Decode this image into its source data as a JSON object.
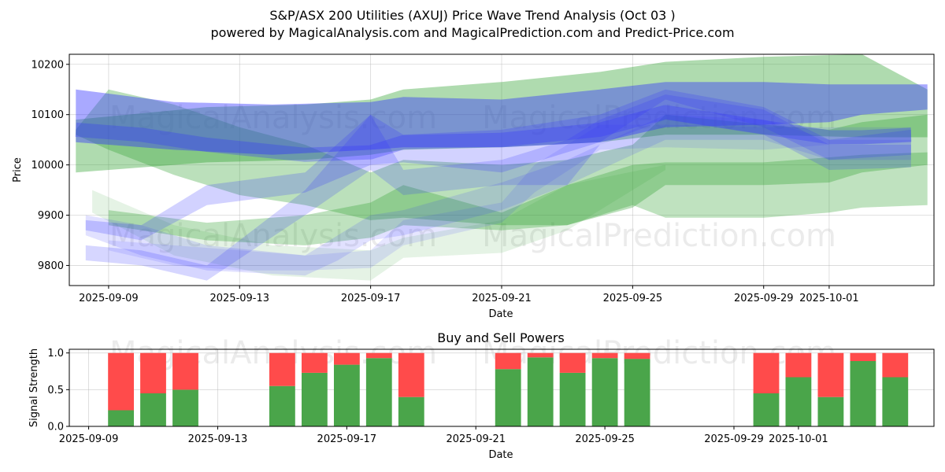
{
  "chart_data": [
    {
      "type": "area",
      "title_line1": "S&P/ASX 200 Utilities (AXUJ) Price Wave Trend Analysis (Oct 03 )",
      "title_line2": "powered by MagicalAnalysis.com and MagicalPrediction.com and Predict-Price.com",
      "xlabel": "Date",
      "ylabel": "Price",
      "ylim": [
        9760,
        10220
      ],
      "xlim": [
        -1.2,
        25.2
      ],
      "yticks": [
        9800,
        9900,
        10000,
        10100,
        10200
      ],
      "xticks": [
        {
          "day": 0,
          "label": "2025-09-09"
        },
        {
          "day": 4,
          "label": "2025-09-13"
        },
        {
          "day": 8,
          "label": "2025-09-17"
        },
        {
          "day": 12,
          "label": "2025-09-21"
        },
        {
          "day": 16,
          "label": "2025-09-25"
        },
        {
          "day": 20,
          "label": "2025-09-29"
        },
        {
          "day": 22,
          "label": "2025-10-01"
        }
      ],
      "watermarks": [
        "MagicalAnalysis.com",
        "MagicalPrediction.com"
      ],
      "series": [
        {
          "name": "green-wave-1",
          "color": "#2ca02c",
          "opacity": 0.38,
          "x": [
            -1,
            3,
            6,
            8,
            9,
            12,
            15,
            17,
            20,
            23,
            25
          ],
          "low": [
            9985,
            10005,
            10010,
            10020,
            10030,
            10035,
            10045,
            10060,
            10060,
            10055,
            10055
          ],
          "high": [
            10090,
            10115,
            10120,
            10130,
            10150,
            10165,
            10185,
            10205,
            10215,
            10220,
            10150
          ]
        },
        {
          "name": "green-wave-2",
          "color": "#2ca02c",
          "opacity": 0.32,
          "x": [
            -1,
            0,
            2,
            4,
            6,
            8,
            9,
            12,
            14,
            16,
            17,
            20,
            22,
            23,
            25
          ],
          "low": [
            10060,
            10030,
            9980,
            9940,
            9920,
            9890,
            9895,
            9880,
            9880,
            9915,
            9960,
            9960,
            9965,
            9985,
            10000
          ],
          "high": [
            10070,
            10150,
            10120,
            10075,
            10040,
            9985,
            10010,
            10000,
            10010,
            10040,
            10100,
            10080,
            10070,
            10085,
            10100
          ]
        },
        {
          "name": "green-wave-3",
          "color": "#2ca02c",
          "opacity": 0.3,
          "x": [
            0,
            3,
            6,
            8,
            9,
            12,
            14,
            16,
            17,
            20,
            22,
            23,
            25
          ],
          "low": [
            9880,
            9850,
            9840,
            9855,
            9880,
            9870,
            9880,
            9920,
            9895,
            9895,
            9905,
            9915,
            9920
          ],
          "high": [
            9910,
            9885,
            9900,
            9925,
            9960,
            9905,
            9960,
            10000,
            10005,
            10005,
            10015,
            10020,
            10025
          ]
        },
        {
          "name": "green-wave-4",
          "color": "#2ca02c",
          "opacity": 0.12,
          "x": [
            -0.5,
            2,
            5,
            8,
            9,
            12,
            14,
            17
          ],
          "low": [
            9905,
            9820,
            9780,
            9770,
            9815,
            9825,
            9870,
            9990
          ],
          "high": [
            9950,
            9880,
            9840,
            9830,
            9855,
            9890,
            9960,
            10000
          ]
        },
        {
          "name": "blue-wave-1",
          "color": "#3333ff",
          "opacity": 0.42,
          "x": [
            -1,
            2,
            5,
            8,
            9,
            12,
            15,
            17,
            20,
            22,
            23,
            25
          ],
          "low": [
            10045,
            10030,
            10020,
            10030,
            10035,
            10035,
            10045,
            10075,
            10080,
            10085,
            10100,
            10110
          ],
          "high": [
            10150,
            10125,
            10120,
            10125,
            10135,
            10130,
            10150,
            10165,
            10165,
            10160,
            10160,
            10160
          ]
        },
        {
          "name": "blue-wave-2",
          "color": "#3333ff",
          "opacity": 0.3,
          "x": [
            -1,
            1,
            3,
            6,
            8,
            9,
            12,
            15,
            17,
            20,
            22,
            23,
            24.5
          ],
          "low": [
            10070,
            10060,
            10040,
            10020,
            10025,
            10045,
            10050,
            10070,
            10105,
            10075,
            10055,
            10055,
            10060
          ]
        },
        {
          "name": "blue-wave-3",
          "color": "#3333ff",
          "opacity": 0.22,
          "x": [
            -0.7,
            1,
            3,
            6,
            8,
            9,
            12,
            15,
            17,
            20,
            22,
            24.5
          ],
          "low": [
            9870,
            9850,
            9920,
            9945,
            10000,
            10005,
            9985,
            10045,
            10130,
            10075,
            10010,
            10020
          ],
          "high": [
            9890,
            9880,
            9960,
            9985,
            10100,
            10060,
            10070,
            10100,
            10150,
            10115,
            10050,
            10070
          ]
        },
        {
          "name": "blue-wave-4",
          "color": "#3333ff",
          "opacity": 0.2,
          "x": [
            -0.7,
            1,
            3,
            6,
            8,
            9,
            12,
            14,
            15,
            17,
            20,
            22,
            24.5
          ],
          "low": [
            9810,
            9800,
            9770,
            9900,
            9990,
            9940,
            9960,
            9960,
            10040,
            10090,
            10060,
            9990,
            9995
          ],
          "high": [
            9840,
            9830,
            9800,
            9950,
            10100,
            9990,
            10010,
            10050,
            10090,
            10140,
            10110,
            10040,
            10040
          ]
        },
        {
          "name": "blue-wave-5",
          "color": "#3333ff",
          "opacity": 0.15,
          "x": [
            -0.7,
            1,
            3,
            6,
            7,
            8,
            9,
            12,
            14,
            16,
            17,
            20,
            22,
            24.5
          ],
          "low": [
            9860,
            9820,
            9790,
            9780,
            9810,
            9850,
            9860,
            9910,
            9960,
            10020,
            10050,
            10050,
            10010,
            10010
          ],
          "high": [
            9900,
            9880,
            9840,
            9820,
            9860,
            9900,
            9910,
            9965,
            10010,
            10070,
            10100,
            10090,
            10050,
            10050
          ]
        },
        {
          "name": "blue-wave-6",
          "color": "#3333ff",
          "opacity": 0.12,
          "x": [
            0,
            2,
            4,
            6,
            8,
            9,
            12,
            13,
            15,
            17,
            20,
            22,
            24.5
          ],
          "low": [
            9830,
            9800,
            9790,
            9790,
            9795,
            9840,
            9885,
            9945,
            10030,
            10035,
            10030,
            10040,
            10045
          ],
          "high": [
            9850,
            9840,
            9830,
            9820,
            9830,
            9890,
            9925,
            10000,
            10080,
            10080,
            10075,
            10075,
            10075
          ]
        }
      ]
    },
    {
      "type": "bar",
      "title": "Buy and Sell Powers",
      "xlabel": "Date",
      "ylabel": "Signal Strength",
      "ylim": [
        0,
        1.05
      ],
      "xlim": [
        -1.6,
        25.2
      ],
      "yticks": [
        0.0,
        0.5,
        1.0
      ],
      "ytick_labels": [
        "0.0",
        "0.5",
        "1.0"
      ],
      "xticks": [
        {
          "day": -1,
          "label": "2025-09-09"
        },
        {
          "day": 3,
          "label": "2025-09-13"
        },
        {
          "day": 7,
          "label": "2025-09-17"
        },
        {
          "day": 11,
          "label": "2025-09-21"
        },
        {
          "day": 15,
          "label": "2025-09-25"
        },
        {
          "day": 19,
          "label": "2025-09-29"
        },
        {
          "day": 21,
          "label": "2025-10-01"
        }
      ],
      "buy_color": "#4aa54a",
      "sell_color": "#ff4b4b",
      "x": [
        0,
        1,
        2,
        5,
        6,
        7,
        8,
        9,
        12,
        13,
        14,
        15,
        16,
        20,
        21,
        22,
        23,
        24
      ],
      "buy": [
        0.22,
        0.45,
        0.5,
        0.55,
        0.73,
        0.84,
        0.93,
        0.4,
        0.78,
        0.94,
        0.73,
        0.93,
        0.92,
        0.45,
        0.67,
        0.4,
        0.89,
        0.67
      ],
      "sell": [
        0.78,
        0.55,
        0.5,
        0.45,
        0.27,
        0.16,
        0.07,
        0.6,
        0.22,
        0.06,
        0.27,
        0.07,
        0.08,
        0.55,
        0.33,
        0.6,
        0.11,
        0.33
      ],
      "watermarks": [
        "MagicalAnalysis.com",
        "MagicalPrediction.com"
      ]
    }
  ]
}
